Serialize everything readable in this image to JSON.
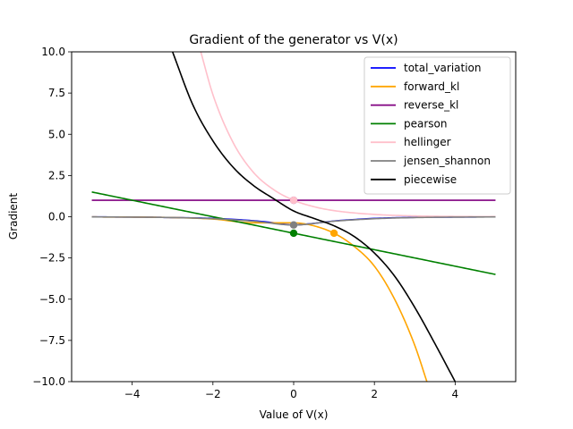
{
  "chart_data": {
    "type": "line",
    "title": "Gradient of the generator vs V(x)",
    "xlabel": "Value of V(x)",
    "ylabel": "Gradient",
    "xlim": [
      -5.5,
      5.5
    ],
    "ylim": [
      -10,
      10
    ],
    "x_ticks": [
      -4,
      -2,
      0,
      2,
      4
    ],
    "x_tick_labels": [
      "−4",
      "−2",
      "0",
      "2",
      "4"
    ],
    "y_ticks": [
      -10,
      -7.5,
      -5,
      -2.5,
      0,
      2.5,
      5,
      7.5,
      10
    ],
    "y_tick_labels": [
      "−10.0",
      "−7.5",
      "−5.0",
      "−2.5",
      "0.0",
      "2.5",
      "5.0",
      "7.5",
      "10.0"
    ],
    "grid": false,
    "legend_position": "top-right",
    "series": [
      {
        "name": "total_variation",
        "color": "#0000ff",
        "x": [
          -5,
          -4,
          -3,
          -2,
          -1.5,
          -1,
          -0.5,
          0,
          0.5,
          1,
          1.5,
          2,
          3,
          4,
          5
        ],
        "y": [
          -0.01,
          -0.02,
          -0.05,
          -0.1,
          -0.16,
          -0.24,
          -0.36,
          -0.5,
          -0.4,
          -0.26,
          -0.17,
          -0.1,
          -0.04,
          -0.02,
          -0.01
        ]
      },
      {
        "name": "forward_kl",
        "color": "#ffa500",
        "x": [
          -5,
          -3,
          -2,
          -1,
          0,
          0.5,
          1,
          1.5,
          2,
          2.5,
          3,
          3.3
        ],
        "y": [
          -0.01,
          -0.05,
          -0.14,
          -0.37,
          -0.37,
          -0.55,
          -1.0,
          -1.8,
          -3.0,
          -5.0,
          -7.8,
          -10.0
        ],
        "marker": {
          "x": 1,
          "y": -1
        }
      },
      {
        "name": "reverse_kl",
        "color": "#800080",
        "x": [
          -5,
          5
        ],
        "y": [
          1,
          1
        ],
        "marker": {
          "x": 0,
          "y": 1
        }
      },
      {
        "name": "pearson",
        "color": "#008000",
        "x": [
          -5,
          5
        ],
        "y": [
          1.5,
          -3.5
        ],
        "marker": {
          "x": 0,
          "y": -1
        }
      },
      {
        "name": "hellinger",
        "color": "#ffc0cb",
        "x": [
          -2.3,
          -2,
          -1.5,
          -1,
          -0.5,
          0,
          0.5,
          1,
          2,
          3,
          4,
          5
        ],
        "y": [
          10.0,
          7.4,
          4.5,
          2.7,
          1.65,
          1.0,
          0.61,
          0.37,
          0.14,
          0.05,
          0.02,
          0.01
        ],
        "marker": {
          "x": 0,
          "y": 1
        }
      },
      {
        "name": "jensen_shannon",
        "color": "#808080",
        "x": [
          -5,
          -3,
          -2,
          -1,
          0,
          1,
          2,
          3,
          5
        ],
        "y": [
          -0.01,
          -0.05,
          -0.12,
          -0.27,
          -0.5,
          -0.27,
          -0.12,
          -0.05,
          -0.01
        ],
        "marker": {
          "x": 0,
          "y": -0.5
        }
      },
      {
        "name": "piecewise",
        "color": "#000000",
        "x": [
          -3,
          -2.5,
          -2,
          -1.5,
          -1,
          -0.5,
          0,
          0.5,
          1,
          1.5,
          2,
          2.5,
          3,
          3.5,
          4
        ],
        "y": [
          10.0,
          6.8,
          4.6,
          3.0,
          1.9,
          1.1,
          0.35,
          -0.1,
          -0.55,
          -1.2,
          -2.2,
          -3.6,
          -5.5,
          -7.7,
          -10.0
        ]
      }
    ]
  }
}
